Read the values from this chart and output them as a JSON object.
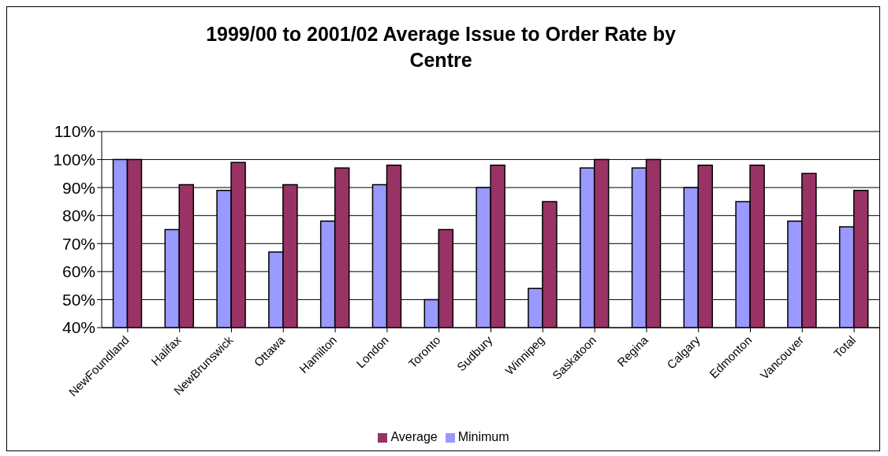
{
  "chart_data": {
    "type": "bar",
    "title": "1999/00 to 2001/02 Average Issue to Order Rate by Centre",
    "categories": [
      "NewFoundland",
      "Halifax",
      "NewBrunswick",
      "Ottawa",
      "Hamilton",
      "London",
      "Toronto",
      "Sudbury",
      "Winnipeg",
      "Saskatoon",
      "Regina",
      "Calgary",
      "Edmonton",
      "Vancouver",
      "Total"
    ],
    "series": [
      {
        "name": "Minimum",
        "color": "#9999ff",
        "values": [
          100,
          75,
          89,
          67,
          78,
          91,
          50,
          90,
          54,
          97,
          97,
          90,
          85,
          78,
          76
        ]
      },
      {
        "name": "Average",
        "color": "#993366",
        "values": [
          100,
          91,
          99,
          91,
          97,
          98,
          75,
          98,
          85,
          100,
          100,
          98,
          98,
          95,
          89
        ]
      }
    ],
    "ylim": [
      40,
      110
    ],
    "yticks": [
      {
        "value": 40,
        "label": "40%"
      },
      {
        "value": 50,
        "label": "50%"
      },
      {
        "value": 60,
        "label": "60%"
      },
      {
        "value": 70,
        "label": "70%"
      },
      {
        "value": 80,
        "label": "80%"
      },
      {
        "value": 90,
        "label": "90%"
      },
      {
        "value": 100,
        "label": "100%"
      },
      {
        "value": 110,
        "label": "110%"
      }
    ],
    "grid": "y",
    "legend": "bottom"
  }
}
